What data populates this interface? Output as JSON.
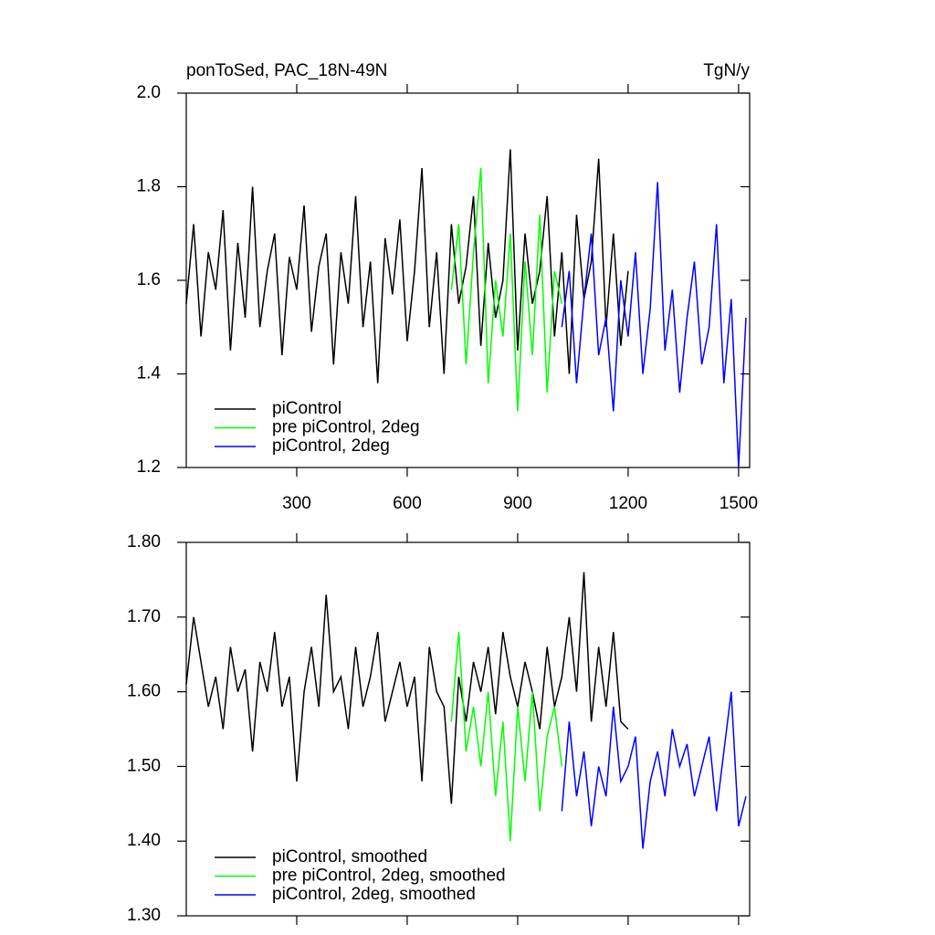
{
  "chart_data": [
    {
      "type": "line",
      "title": "ponToSed, PAC_18N-49N",
      "units": "TgN/y",
      "xlim": [
        0,
        1530
      ],
      "xticks": [
        300,
        600,
        900,
        1200,
        1500
      ],
      "xtick_labels": true,
      "ylim": [
        1.2,
        2.0
      ],
      "yticks": [
        1.2,
        1.4,
        1.6,
        1.8,
        {
          "value": 2.0,
          "label": "2.0"
        }
      ],
      "legend": "bottom-left",
      "series": [
        {
          "name": "piControl",
          "color": "#000000",
          "x": [
            0,
            20,
            40,
            60,
            80,
            100,
            120,
            140,
            160,
            180,
            200,
            220,
            240,
            260,
            280,
            300,
            320,
            340,
            360,
            380,
            400,
            420,
            440,
            460,
            480,
            500,
            520,
            540,
            560,
            580,
            600,
            620,
            640,
            660,
            680,
            700,
            720,
            740,
            760,
            780,
            800,
            820,
            840,
            860,
            880,
            900,
            920,
            940,
            960,
            980,
            1000,
            1020,
            1040,
            1060,
            1080,
            1100,
            1120,
            1140,
            1160,
            1180,
            1200
          ],
          "values": [
            1.55,
            1.72,
            1.48,
            1.66,
            1.58,
            1.75,
            1.45,
            1.68,
            1.52,
            1.8,
            1.5,
            1.62,
            1.7,
            1.44,
            1.65,
            1.58,
            1.76,
            1.49,
            1.63,
            1.7,
            1.42,
            1.66,
            1.55,
            1.78,
            1.5,
            1.64,
            1.38,
            1.69,
            1.57,
            1.73,
            1.47,
            1.62,
            1.84,
            1.5,
            1.66,
            1.4,
            1.72,
            1.55,
            1.63,
            1.78,
            1.46,
            1.68,
            1.52,
            1.6,
            1.88,
            1.45,
            1.7,
            1.55,
            1.62,
            1.78,
            1.48,
            1.66,
            1.4,
            1.74,
            1.56,
            1.64,
            1.86,
            1.5,
            1.7,
            1.46,
            1.62
          ]
        },
        {
          "name": "pre piControl, 2deg",
          "color": "#00ff00",
          "x": [
            720,
            740,
            760,
            780,
            800,
            820,
            840,
            860,
            880,
            900,
            920,
            940,
            960,
            980,
            1000,
            1020
          ],
          "values": [
            1.58,
            1.72,
            1.42,
            1.66,
            1.84,
            1.38,
            1.6,
            1.48,
            1.7,
            1.32,
            1.64,
            1.44,
            1.74,
            1.36,
            1.62,
            1.55
          ]
        },
        {
          "name": "piControl, 2deg",
          "color": "#0000ff",
          "x": [
            1020,
            1040,
            1060,
            1080,
            1100,
            1120,
            1140,
            1160,
            1180,
            1200,
            1220,
            1240,
            1260,
            1280,
            1300,
            1320,
            1340,
            1360,
            1380,
            1400,
            1420,
            1440,
            1460,
            1480,
            1500,
            1520
          ],
          "values": [
            1.5,
            1.62,
            1.38,
            1.56,
            1.7,
            1.44,
            1.52,
            1.32,
            1.6,
            1.48,
            1.66,
            1.4,
            1.54,
            1.81,
            1.45,
            1.58,
            1.36,
            1.52,
            1.64,
            1.42,
            1.5,
            1.72,
            1.38,
            1.56,
            1.2,
            1.52
          ]
        }
      ]
    },
    {
      "type": "line",
      "xlim": [
        0,
        1530
      ],
      "xticks": [
        300,
        600,
        900,
        1200,
        1500
      ],
      "xtick_labels": false,
      "ylim": [
        1.3,
        1.8
      ],
      "yticks": [
        {
          "value": 1.3,
          "label": "1.30"
        },
        {
          "value": 1.4,
          "label": "1.40"
        },
        {
          "value": 1.5,
          "label": "1.50"
        },
        {
          "value": 1.6,
          "label": "1.60"
        },
        {
          "value": 1.7,
          "label": "1.70"
        },
        {
          "value": 1.8,
          "label": "1.80"
        }
      ],
      "legend": "bottom-left",
      "series": [
        {
          "name": "piControl, smoothed",
          "color": "#000000",
          "x": [
            0,
            20,
            40,
            60,
            80,
            100,
            120,
            140,
            160,
            180,
            200,
            220,
            240,
            260,
            280,
            300,
            320,
            340,
            360,
            380,
            400,
            420,
            440,
            460,
            480,
            500,
            520,
            540,
            560,
            580,
            600,
            620,
            640,
            660,
            680,
            700,
            720,
            740,
            760,
            780,
            800,
            820,
            840,
            860,
            880,
            900,
            920,
            940,
            960,
            980,
            1000,
            1020,
            1040,
            1060,
            1080,
            1100,
            1120,
            1140,
            1160,
            1180,
            1200
          ],
          "values": [
            1.61,
            1.7,
            1.64,
            1.58,
            1.62,
            1.55,
            1.66,
            1.6,
            1.63,
            1.52,
            1.64,
            1.6,
            1.68,
            1.58,
            1.62,
            1.48,
            1.6,
            1.66,
            1.58,
            1.73,
            1.6,
            1.62,
            1.55,
            1.66,
            1.58,
            1.62,
            1.68,
            1.56,
            1.6,
            1.64,
            1.58,
            1.62,
            1.48,
            1.66,
            1.6,
            1.58,
            1.45,
            1.62,
            1.56,
            1.64,
            1.6,
            1.66,
            1.57,
            1.68,
            1.62,
            1.58,
            1.64,
            1.6,
            1.55,
            1.66,
            1.58,
            1.62,
            1.7,
            1.6,
            1.76,
            1.56,
            1.66,
            1.58,
            1.68,
            1.56,
            1.55
          ]
        },
        {
          "name": "pre piControl, 2deg, smoothed",
          "color": "#00ff00",
          "x": [
            720,
            740,
            760,
            780,
            800,
            820,
            840,
            860,
            880,
            900,
            920,
            940,
            960,
            980,
            1000,
            1020
          ],
          "values": [
            1.56,
            1.68,
            1.52,
            1.58,
            1.5,
            1.6,
            1.46,
            1.56,
            1.4,
            1.58,
            1.48,
            1.6,
            1.44,
            1.54,
            1.58,
            1.5
          ]
        },
        {
          "name": "piControl, 2deg, smoothed",
          "color": "#0000ff",
          "x": [
            1020,
            1040,
            1060,
            1080,
            1100,
            1120,
            1140,
            1160,
            1180,
            1200,
            1220,
            1240,
            1260,
            1280,
            1300,
            1320,
            1340,
            1360,
            1380,
            1400,
            1420,
            1440,
            1460,
            1480,
            1500,
            1520
          ],
          "values": [
            1.44,
            1.56,
            1.46,
            1.52,
            1.42,
            1.5,
            1.46,
            1.58,
            1.48,
            1.5,
            1.54,
            1.39,
            1.48,
            1.52,
            1.46,
            1.55,
            1.5,
            1.53,
            1.46,
            1.5,
            1.54,
            1.44,
            1.52,
            1.6,
            1.42,
            1.46
          ]
        }
      ]
    }
  ]
}
